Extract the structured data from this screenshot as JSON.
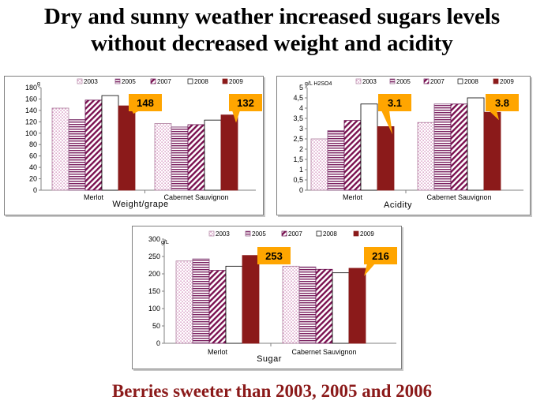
{
  "title_line1": "Dry and sunny weather increased sugars levels",
  "title_line2": "without decreased weight and acidity",
  "footer": "Berries sweeter than 2003, 2005 and 2006",
  "chart_data": [
    {
      "type": "bar",
      "title": "Weight/grape",
      "unit": "g",
      "categories": [
        "Merlot",
        "Cabernet Sauvignon"
      ],
      "series": [
        {
          "name": "2003",
          "values": [
            144,
            117
          ]
        },
        {
          "name": "2005",
          "values": [
            124,
            111
          ]
        },
        {
          "name": "2007",
          "values": [
            158,
            115
          ]
        },
        {
          "name": "2008",
          "values": [
            166,
            123
          ]
        },
        {
          "name": "2009",
          "values": [
            148,
            132
          ]
        }
      ],
      "callouts": [
        "148",
        "132"
      ],
      "ylim": [
        0,
        180
      ],
      "yticks": [
        "0",
        "20",
        "40",
        "60",
        "80",
        "100",
        "120",
        "140",
        "160",
        "180"
      ],
      "legend": "top"
    },
    {
      "type": "bar",
      "title": "Acidity",
      "unit": "g/L H2SO4",
      "categories": [
        "Merlot",
        "Cabernet Sauvignon"
      ],
      "series": [
        {
          "name": "2003",
          "values": [
            2.5,
            3.3
          ]
        },
        {
          "name": "2005",
          "values": [
            2.9,
            4.2
          ]
        },
        {
          "name": "2007",
          "values": [
            3.4,
            4.2
          ]
        },
        {
          "name": "2008",
          "values": [
            4.2,
            4.5
          ]
        },
        {
          "name": "2009",
          "values": [
            3.1,
            3.8
          ]
        }
      ],
      "callouts": [
        "3.1",
        "3.8"
      ],
      "ylim": [
        0,
        5
      ],
      "yticks": [
        "0",
        "0,5",
        "1",
        "1,5",
        "2",
        "2,5",
        "3",
        "3,5",
        "4",
        "4,5",
        "5"
      ],
      "legend": "top"
    },
    {
      "type": "bar",
      "title": "Sugar",
      "unit": "g/L",
      "categories": [
        "Merlot",
        "Cabernet Sauvignon"
      ],
      "series": [
        {
          "name": "2003",
          "values": [
            237,
            222
          ]
        },
        {
          "name": "2005",
          "values": [
            243,
            220
          ]
        },
        {
          "name": "2007",
          "values": [
            210,
            213
          ]
        },
        {
          "name": "2008",
          "values": [
            222,
            203
          ]
        },
        {
          "name": "2009",
          "values": [
            253,
            216
          ]
        }
      ],
      "callouts": [
        "253",
        "216"
      ],
      "ylim": [
        0,
        300
      ],
      "yticks": [
        "0",
        "50",
        "100",
        "150",
        "200",
        "250",
        "300"
      ],
      "legend": "top"
    }
  ],
  "colors": {
    "dark_red": "#8b1a1a",
    "pink_pattern": "#c060a0",
    "purple_pattern": "#7a2060",
    "dark_purple": "#7a1050",
    "callout_orange": "#ffa500",
    "text": "#000000"
  }
}
